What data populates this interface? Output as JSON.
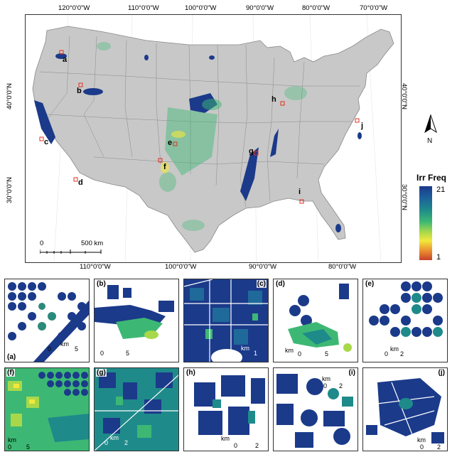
{
  "map": {
    "top_lon_labels": [
      "120°0'0\"W",
      "110°0'0\"W",
      "100°0'0\"W",
      "90°0'0\"W",
      "80°0'0\"W",
      "70°0'0\"W"
    ],
    "bottom_lon_labels": [
      "110°0'0\"W",
      "100°0'0\"W",
      "90°0'0\"W",
      "80°0'0\"W"
    ],
    "left_lat_labels": [
      "40°0'0\"N",
      "30°0'0\"N"
    ],
    "right_lat_labels": [
      "40°0'0\"N",
      "30°0'0\"N"
    ],
    "sites": [
      "a",
      "b",
      "c",
      "d",
      "e",
      "f",
      "g",
      "h",
      "i",
      "j"
    ],
    "scale": {
      "zero": "0",
      "distance": "500 km"
    },
    "north_label": "N",
    "land_color": "#c8c8c8",
    "irrigation_color": "#1b3a8a"
  },
  "legend": {
    "title": "Irr Freq",
    "max": "21",
    "min": "1",
    "colors": [
      "#1b3a8a",
      "#1f8a8a",
      "#3db874",
      "#a8d84a",
      "#f2e83c",
      "#e98a30",
      "#c5422a"
    ]
  },
  "panels": [
    {
      "label": "(a)",
      "scale_zero": "0",
      "scale_unit": "km",
      "scale_max": "5"
    },
    {
      "label": "(b)",
      "scale_zero": "0",
      "scale_unit": "",
      "scale_max": "5"
    },
    {
      "label": "(c)",
      "scale_zero": "0",
      "scale_unit": "km",
      "scale_max": "1"
    },
    {
      "label": "(d)",
      "scale_zero": "0",
      "scale_unit": "km",
      "scale_max": "5"
    },
    {
      "label": "(e)",
      "scale_zero": "0",
      "scale_unit": "km",
      "scale_max": "2"
    },
    {
      "label": "(f)",
      "scale_zero": "0",
      "scale_unit": "km",
      "scale_max": "5"
    },
    {
      "label": "(g)",
      "scale_zero": "0",
      "scale_unit": "km",
      "scale_max": "2"
    },
    {
      "label": "(h)",
      "scale_zero": "0",
      "scale_unit": "km",
      "scale_max": "2"
    },
    {
      "label": "(i)",
      "scale_zero": "0",
      "scale_unit": "km",
      "scale_max": "2"
    },
    {
      "label": "(j)",
      "scale_zero": "0",
      "scale_unit": "km",
      "scale_max": "2"
    }
  ]
}
